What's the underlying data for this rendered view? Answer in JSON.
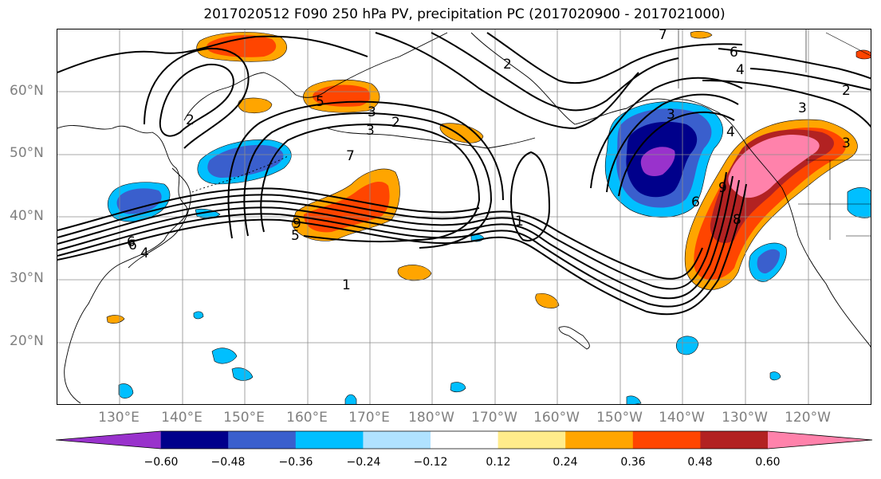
{
  "title": "2017020512 F090 250 hPa PV, precipitation PC (2017020900 - 2017021000)",
  "lat_labels": [
    "60°N",
    "50°N",
    "40°N",
    "30°N",
    "20°N"
  ],
  "lon_labels": [
    "130°E",
    "140°E",
    "150°E",
    "160°E",
    "170°E",
    "180°W",
    "170°W",
    "160°W",
    "150°W",
    "140°W",
    "130°W",
    "120°W"
  ],
  "colorbar": {
    "colors": [
      "#9932cc",
      "#00008b",
      "#3a5fcd",
      "#00bfff",
      "#b0e2ff",
      "#ffffff",
      "#ffec8b",
      "#ffa500",
      "#ff4500",
      "#b22222",
      "#ff82ab"
    ],
    "tick_labels": [
      "−0.60",
      "−0.48",
      "−0.36",
      "−0.24",
      "−0.12",
      "0.12",
      "0.24",
      "0.36",
      "0.48",
      "0.60"
    ]
  },
  "contour_labels": [
    "6",
    "4",
    "2",
    "5",
    "3",
    "2",
    "3",
    "7",
    "9",
    "5",
    "1",
    "6",
    "1",
    "3",
    "6",
    "9",
    "4",
    "8",
    "6",
    "4",
    "2",
    "3",
    "3",
    "2",
    "7"
  ]
}
